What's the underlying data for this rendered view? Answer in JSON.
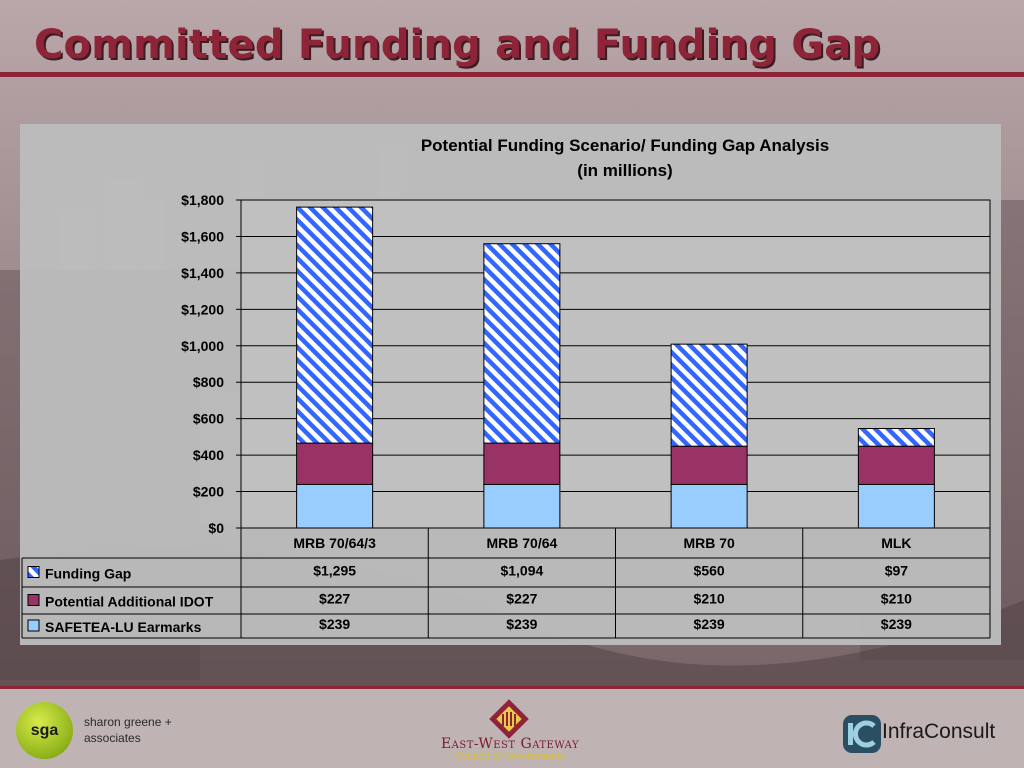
{
  "slide": {
    "title": "Committed Funding and Funding Gap"
  },
  "chart_data": {
    "type": "bar",
    "stacked": true,
    "title": "Potential Funding Scenario/ Funding Gap Analysis",
    "subtitle": "(in millions)",
    "categories": [
      "MRB 70/64/3",
      "MRB 70/64",
      "MRB 70",
      "MLK"
    ],
    "ylim": [
      0,
      1800
    ],
    "yticks": [
      0,
      200,
      400,
      600,
      800,
      1000,
      1200,
      1400,
      1600,
      1800
    ],
    "ytick_labels": [
      "$0",
      "$200",
      "$400",
      "$600",
      "$800",
      "$1,000",
      "$1,200",
      "$1,400",
      "$1,600",
      "$1,800"
    ],
    "grid": true,
    "legend": "data-table",
    "series": [
      {
        "name": "SAFETEA-LU Earmarks",
        "values": [
          239,
          239,
          239,
          239
        ],
        "labels": [
          "$239",
          "$239",
          "$239",
          "$239"
        ],
        "color": "#99ccff",
        "pattern": "solid"
      },
      {
        "name": "Potential Additional IDOT",
        "values": [
          227,
          227,
          210,
          210
        ],
        "labels": [
          "$227",
          "$227",
          "$210",
          "$210"
        ],
        "color": "#993366",
        "pattern": "solid"
      },
      {
        "name": "Funding Gap",
        "values": [
          1295,
          1094,
          560,
          97
        ],
        "labels": [
          "$1,295",
          "$1,094",
          "$560",
          "$97"
        ],
        "color": "#3366ff",
        "pattern": "diagonal-stripes"
      }
    ],
    "table_order": [
      2,
      1,
      0
    ]
  },
  "footer": {
    "sga_logo_text": "sga",
    "sga_name": "sharon greene +\nassociates",
    "ewg_name": "East-West Gateway",
    "ewg_sub": "Council of Governments",
    "infra_name": "InfraConsult"
  },
  "colors": {
    "accent": "#8e2438",
    "panel": "#bcbcbc"
  }
}
